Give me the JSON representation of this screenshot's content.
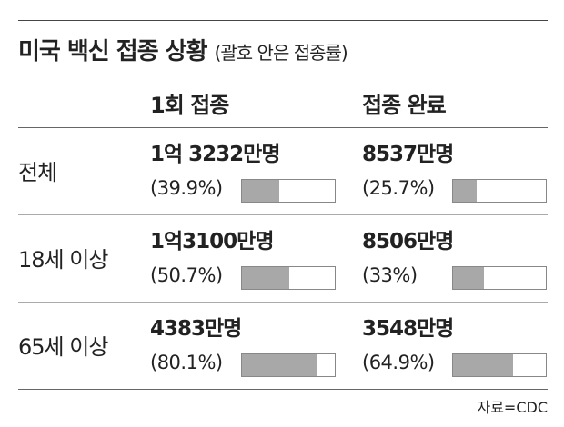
{
  "title": "미국 백신 접종 상황",
  "subtitle": "(괄호 안은 접종률)",
  "columns": [
    "1회 접종",
    "접종 완료"
  ],
  "xlim": [
    0,
    100
  ],
  "rows": [
    {
      "label": "전체",
      "cells": [
        {
          "count": "1억 3232만명",
          "rate": 39.9,
          "rate_label": "(39.9%)"
        },
        {
          "count": "8537만명",
          "rate": 25.7,
          "rate_label": "(25.7%)"
        }
      ]
    },
    {
      "label": "18세 이상",
      "cells": [
        {
          "count": "1억3100만명",
          "rate": 50.7,
          "rate_label": "(50.7%)"
        },
        {
          "count": "8506만명",
          "rate": 33,
          "rate_label": "(33%)"
        }
      ]
    },
    {
      "label": "65세 이상",
      "cells": [
        {
          "count": "4383만명",
          "rate": 80.1,
          "rate_label": "(80.1%)"
        },
        {
          "count": "3548만명",
          "rate": 64.9,
          "rate_label": "(64.9%)"
        }
      ]
    }
  ],
  "source": "자료=CDC"
}
